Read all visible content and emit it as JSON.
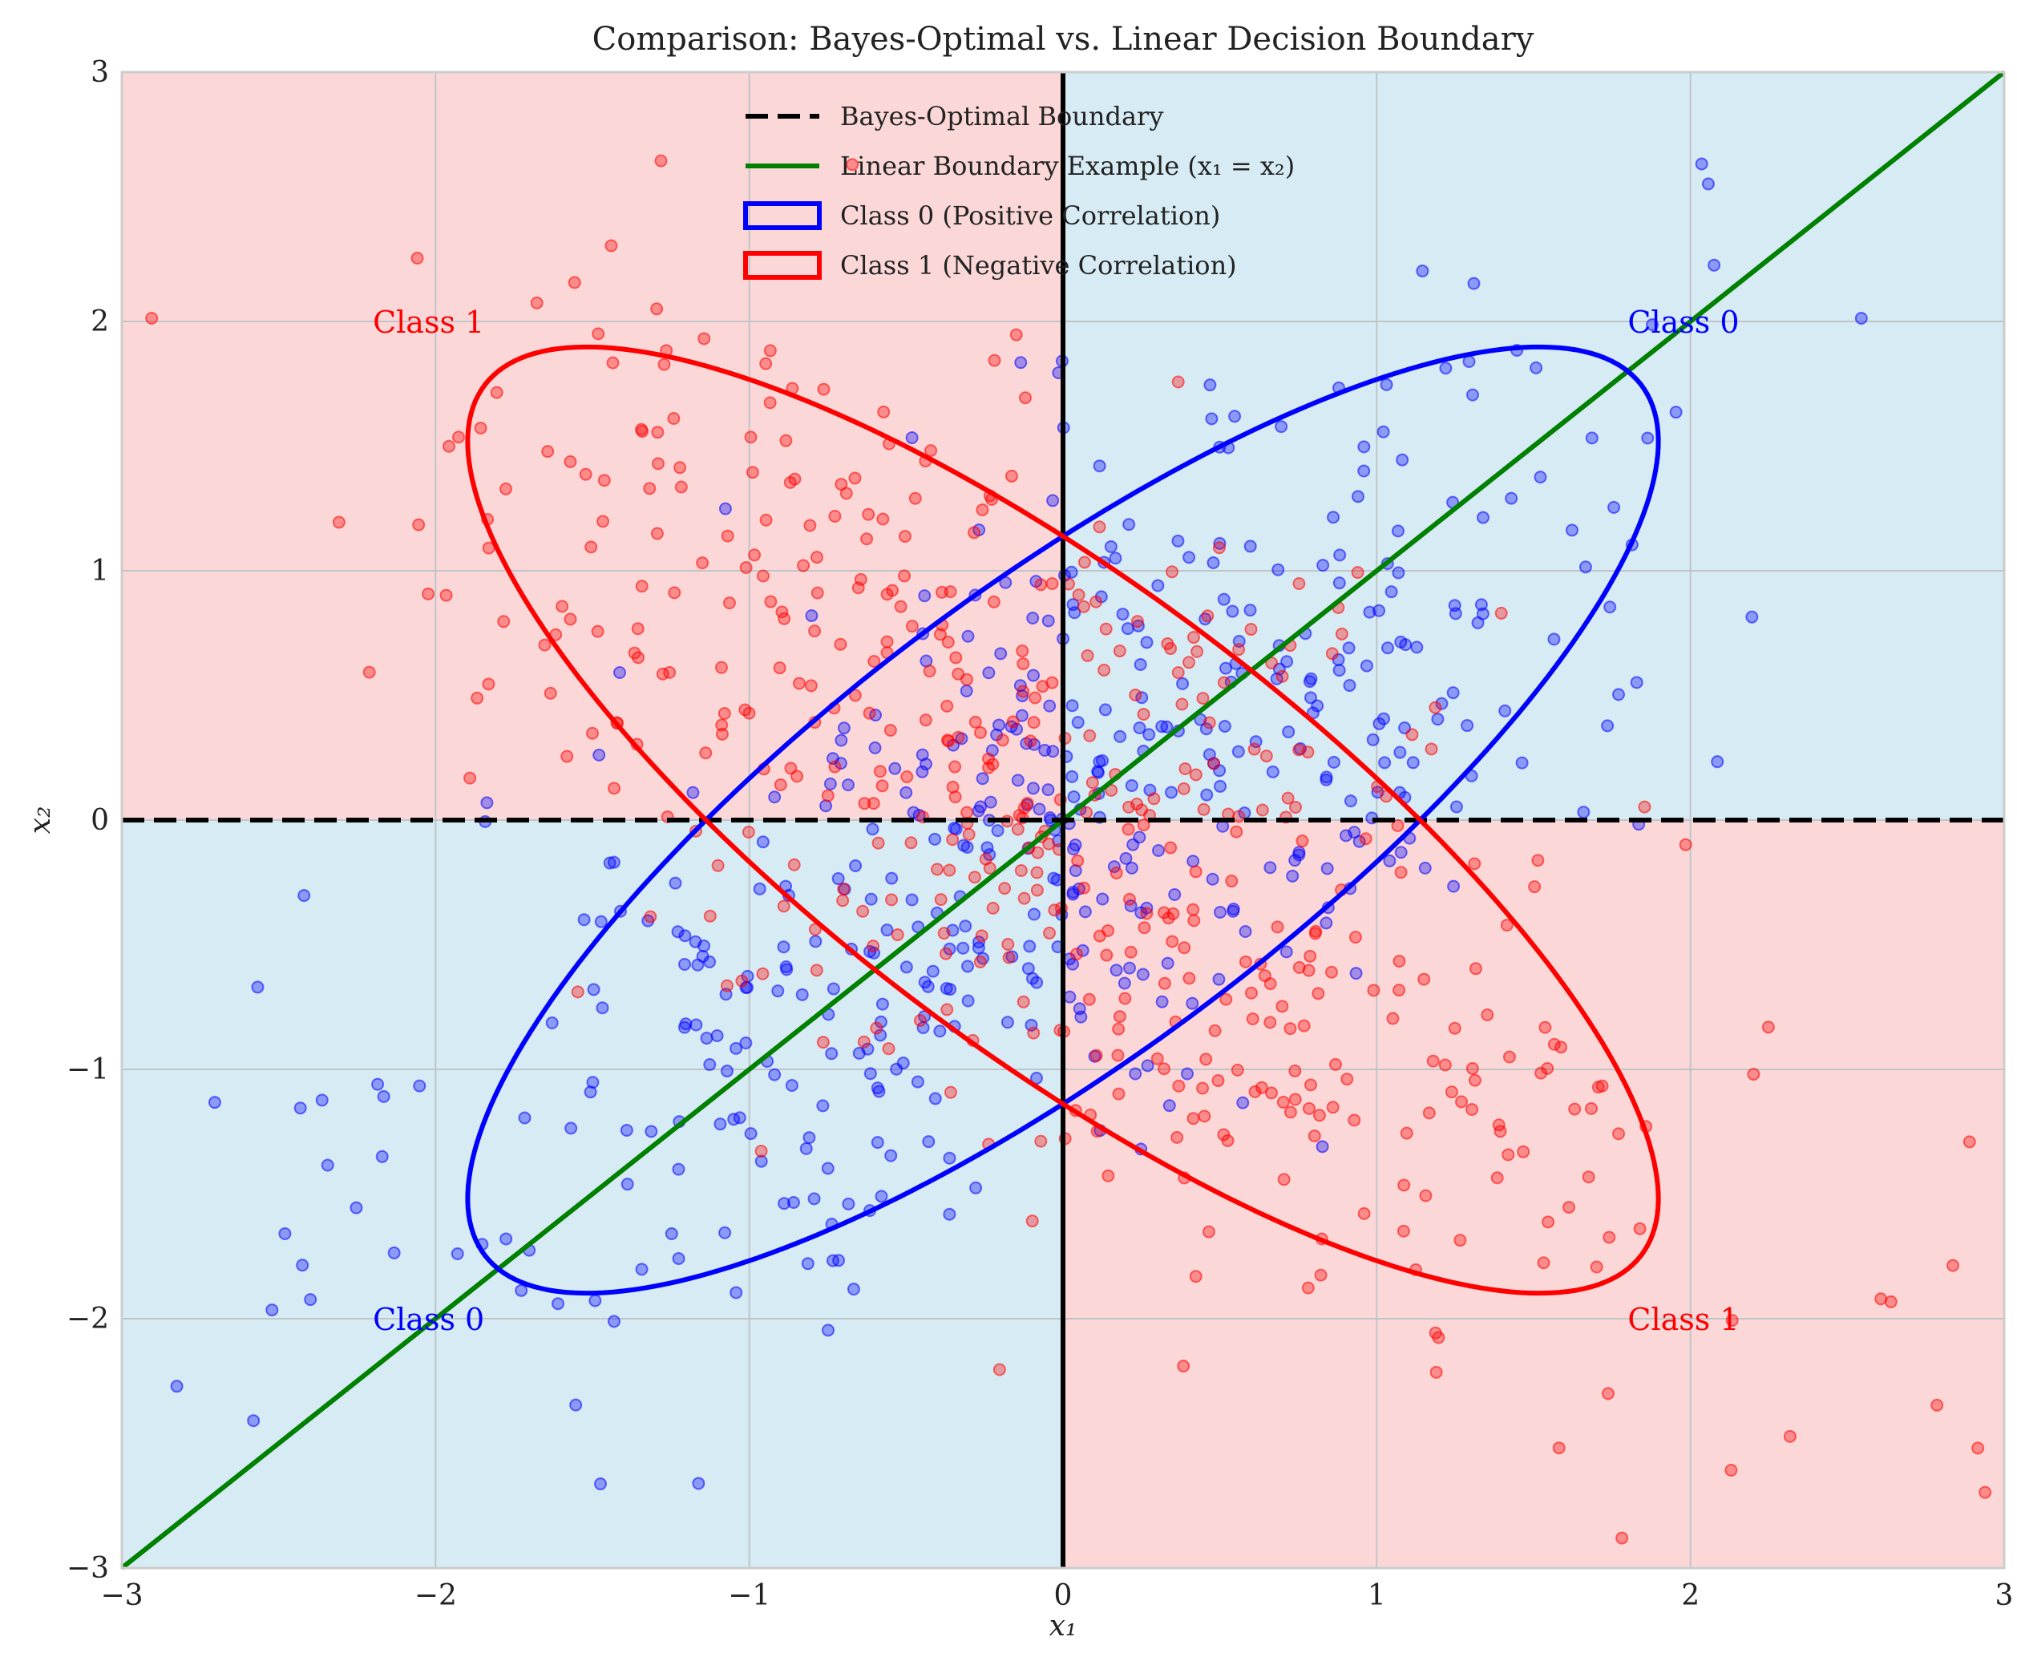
{
  "chart_data": {
    "type": "scatter",
    "title": "Comparison: Bayes-Optimal vs. Linear Decision Boundary",
    "xlabel": "x₁",
    "ylabel": "x₂",
    "xlim": [
      -3,
      3
    ],
    "ylim": [
      -3,
      3
    ],
    "xticks": [
      "−3",
      "−2",
      "−1",
      "0",
      "1",
      "2",
      "3"
    ],
    "yticks": [
      "−3",
      "−2",
      "−1",
      "0",
      "1",
      "2",
      "3"
    ],
    "grid": true,
    "legend_position": "top-center",
    "legend": [
      {
        "label": "Bayes-Optimal Boundary",
        "style": "dashed-line",
        "color": "#000000"
      },
      {
        "label": "Linear Boundary Example (x₁ = x₂)",
        "style": "line",
        "color": "#008000"
      },
      {
        "label": "Class 0 (Positive Correlation)",
        "style": "ellipse-patch",
        "color": "#0000ff"
      },
      {
        "label": "Class 1 (Negative Correlation)",
        "style": "ellipse-patch",
        "color": "#ff0000"
      }
    ],
    "regions": [
      {
        "name": "Class 0 region",
        "quadrants": [
          "x1>0,x2>0",
          "x1<0,x2<0"
        ],
        "color": "#d6ebf3"
      },
      {
        "name": "Class 1 region",
        "quadrants": [
          "x1<0,x2>0",
          "x1>0,x2<0"
        ],
        "color": "#fbd8d7"
      }
    ],
    "boundaries": {
      "bayes_optimal": {
        "lines": [
          "x1 = 0",
          "x2 = 0"
        ],
        "color": "#000000"
      },
      "linear": {
        "equation": "x1 = x2",
        "color": "#008000"
      }
    },
    "ellipses": [
      {
        "class": "Class 0",
        "center": [
          0,
          0
        ],
        "extreme_points": [
          [
            1.6,
            2.0
          ],
          [
            -1.6,
            -2.0
          ]
        ],
        "axis_intercepts": {
          "x1": 1.2,
          "x2": 1.2
        },
        "color": "#0000ff"
      },
      {
        "class": "Class 1",
        "center": [
          0,
          0
        ],
        "extreme_points": [
          [
            -1.6,
            2.0
          ],
          [
            1.6,
            -2.0
          ]
        ],
        "axis_intercepts": {
          "x1": 1.2,
          "x2": 1.2
        },
        "color": "#ff0000"
      }
    ],
    "series": [
      {
        "name": "Class 0",
        "color": "#0000ff",
        "distribution": "Gaussian, mean (0,0), var 1, correlation +0.7",
        "n_points": 500
      },
      {
        "name": "Class 1",
        "color": "#ff0000",
        "distribution": "Gaussian, mean (0,0), var 1, correlation −0.7",
        "n_points": 500
      }
    ],
    "annotations": [
      {
        "text": "Class 0",
        "x": 1.8,
        "y": 2.0,
        "color": "#0000ff"
      },
      {
        "text": "Class 1",
        "x": -2.2,
        "y": 2.0,
        "color": "#ff0000"
      },
      {
        "text": "Class 0",
        "x": -2.2,
        "y": -2.0,
        "color": "#0000ff"
      },
      {
        "text": "Class 1",
        "x": 1.8,
        "y": -2.0,
        "color": "#ff0000"
      }
    ]
  }
}
